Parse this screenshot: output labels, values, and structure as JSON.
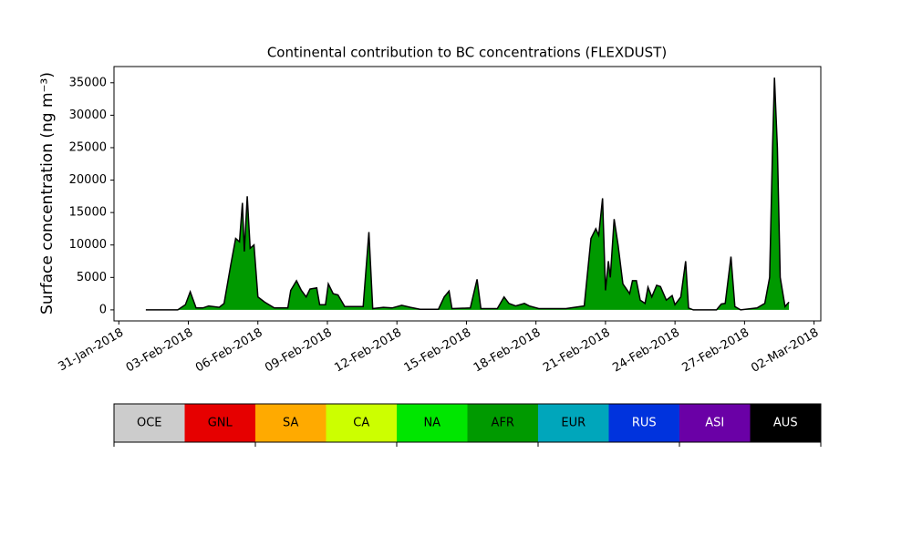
{
  "chart_data": {
    "type": "stacked_area",
    "title": "Continental contribution to BC concentrations (FLEXDUST)",
    "ylabel": "Surface concentration (ng m⁻³)",
    "x": [
      "2018-02-01T04:00",
      "2018-02-02T13:00",
      "2018-02-02T21:00",
      "2018-02-03T02:00",
      "2018-02-03T08:00",
      "2018-02-03T15:00",
      "2018-02-03T21:00",
      "2018-02-04T08:00",
      "2018-02-04T13:00",
      "2018-02-04T20:00",
      "2018-02-05T01:00",
      "2018-02-05T05:00",
      "2018-02-05T08:00",
      "2018-02-05T10:00",
      "2018-02-05T13:00",
      "2018-02-05T16:00",
      "2018-02-05T20:00",
      "2018-02-06T00:00",
      "2018-02-06T07:00",
      "2018-02-06T17:00",
      "2018-02-07T07:00",
      "2018-02-07T10:00",
      "2018-02-07T16:00",
      "2018-02-07T21:00",
      "2018-02-08T02:00",
      "2018-02-08T06:00",
      "2018-02-08T13:00",
      "2018-02-08T16:00",
      "2018-02-08T22:00",
      "2018-02-09T01:00",
      "2018-02-09T06:00",
      "2018-02-09T11:00",
      "2018-02-09T18:00",
      "2018-02-10T13:00",
      "2018-02-10T19:00",
      "2018-02-10T23:00",
      "2018-02-11T10:00",
      "2018-02-11T19:00",
      "2018-02-12T05:00",
      "2018-02-12T14:00",
      "2018-02-13T00:00",
      "2018-02-13T19:00",
      "2018-02-14T01:00",
      "2018-02-14T06:00",
      "2018-02-14T09:00",
      "2018-02-15T04:00",
      "2018-02-15T11:00",
      "2018-02-15T15:00",
      "2018-02-16T08:00",
      "2018-02-16T15:00",
      "2018-02-16T20:00",
      "2018-02-17T03:00",
      "2018-02-17T12:00",
      "2018-02-17T17:00",
      "2018-02-18T03:00",
      "2018-02-19T07:00",
      "2018-02-19T16:00",
      "2018-02-20T02:00",
      "2018-02-20T09:00",
      "2018-02-20T14:00",
      "2018-02-20T17:00",
      "2018-02-20T21:00",
      "2018-02-21T00:00",
      "2018-02-21T03:00",
      "2018-02-21T05:00",
      "2018-02-21T09:00",
      "2018-02-21T13:00",
      "2018-02-21T18:00",
      "2018-02-22T01:00",
      "2018-02-22T04:00",
      "2018-02-22T08:00",
      "2018-02-22T12:00",
      "2018-02-22T17:00",
      "2018-02-22T20:00",
      "2018-02-23T00:00",
      "2018-02-23T05:00",
      "2018-02-23T09:00",
      "2018-02-23T15:00",
      "2018-02-23T21:00",
      "2018-02-24T00:00",
      "2018-02-24T06:00",
      "2018-02-24T11:00",
      "2018-02-24T14:00",
      "2018-02-24T19:00",
      "2018-02-25T19:00",
      "2018-02-26T00:00",
      "2018-02-26T04:00",
      "2018-02-26T10:00",
      "2018-02-26T14:00",
      "2018-02-26T20:00",
      "2018-02-27T13:00",
      "2018-02-27T21:00",
      "2018-02-28T02:00",
      "2018-02-28T05:00",
      "2018-02-28T07:00",
      "2018-02-28T10:00",
      "2018-02-28T13:00",
      "2018-02-28T18:00",
      "2018-02-28T22:00"
    ],
    "series": [
      {
        "name": "AFR",
        "color": "#009a00",
        "values": [
          0,
          0,
          800,
          2800,
          300,
          300,
          600,
          400,
          1000,
          7000,
          11000,
          10500,
          16500,
          9000,
          17500,
          9500,
          10000,
          2000,
          1200,
          300,
          300,
          3000,
          4500,
          3000,
          2000,
          3200,
          3400,
          800,
          800,
          4000,
          2500,
          2300,
          500,
          500,
          12000,
          200,
          400,
          300,
          700,
          400,
          100,
          100,
          2000,
          2900,
          200,
          300,
          4700,
          200,
          200,
          2000,
          1000,
          600,
          1000,
          600,
          200,
          200,
          400,
          600,
          11000,
          12500,
          11500,
          17200,
          3000,
          7500,
          5000,
          14000,
          10000,
          4000,
          2500,
          4500,
          4500,
          1500,
          1000,
          3500,
          2000,
          3800,
          3600,
          1500,
          2200,
          800,
          2000,
          7500,
          300,
          0,
          0,
          900,
          1000,
          8200,
          500,
          0,
          300,
          1000,
          5000,
          25000,
          35800,
          25000,
          5000,
          500,
          1200
        ]
      }
    ],
    "line_color": "#000000",
    "xlim": [
      "2018-01-30T19:00",
      "2018-03-02T07:00"
    ],
    "xticks": [
      {
        "value": "2018-01-31T00:00",
        "label": "31-Jan-2018"
      },
      {
        "value": "2018-02-03T00:00",
        "label": "03-Feb-2018"
      },
      {
        "value": "2018-02-06T00:00",
        "label": "06-Feb-2018"
      },
      {
        "value": "2018-02-09T00:00",
        "label": "09-Feb-2018"
      },
      {
        "value": "2018-02-12T00:00",
        "label": "12-Feb-2018"
      },
      {
        "value": "2018-02-15T00:00",
        "label": "15-Feb-2018"
      },
      {
        "value": "2018-02-18T00:00",
        "label": "18-Feb-2018"
      },
      {
        "value": "2018-02-21T00:00",
        "label": "21-Feb-2018"
      },
      {
        "value": "2018-02-24T00:00",
        "label": "24-Feb-2018"
      },
      {
        "value": "2018-02-27T00:00",
        "label": "27-Feb-2018"
      },
      {
        "value": "2018-03-02T00:00",
        "label": "02-Mar-2018"
      }
    ],
    "ylim": [
      -1700,
      37500
    ],
    "yticks": [
      0,
      5000,
      10000,
      15000,
      20000,
      25000,
      30000,
      35000
    ],
    "grid": false,
    "colorbar": [
      {
        "name": "OCE",
        "color": "#cccccc"
      },
      {
        "name": "GNL",
        "color": "#e60000"
      },
      {
        "name": "SA",
        "color": "#ffaa00"
      },
      {
        "name": "CA",
        "color": "#ccff00"
      },
      {
        "name": "NA",
        "color": "#00e600"
      },
      {
        "name": "AFR",
        "color": "#009a00"
      },
      {
        "name": "EUR",
        "color": "#00a6bb"
      },
      {
        "name": "RUS",
        "color": "#0033dd"
      },
      {
        "name": "ASI",
        "color": "#6a00a6"
      },
      {
        "name": "AUS",
        "color": "#000000"
      }
    ]
  }
}
